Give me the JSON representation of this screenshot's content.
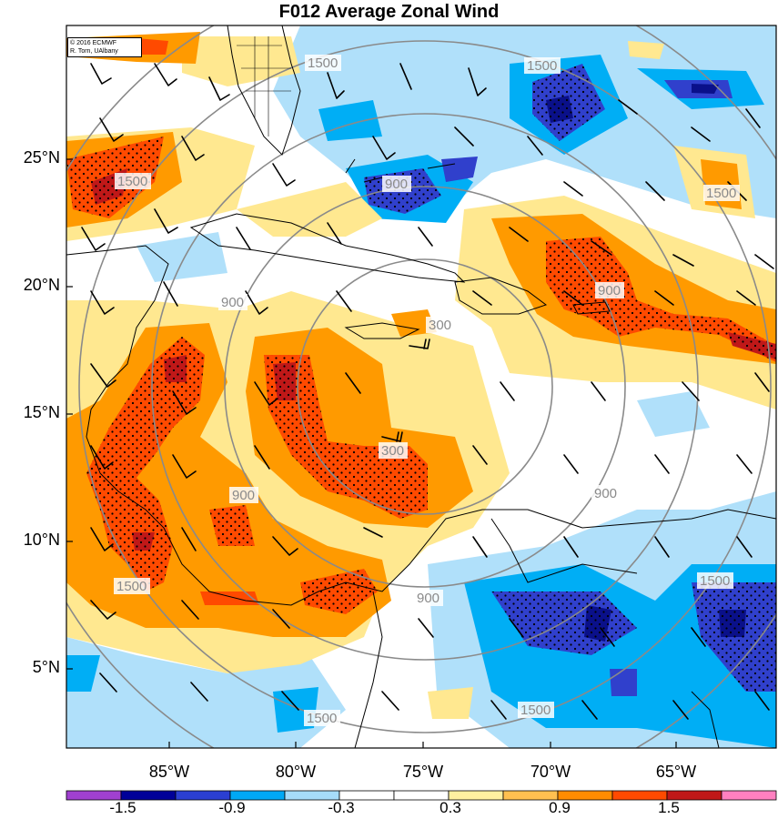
{
  "title": "F012 Average Zonal Wind",
  "credit": {
    "line1": "© 2016 ECMWF",
    "line2": "R. Torn, UAlbany"
  },
  "latitude_labels": [
    "25°N",
    "20°N",
    "15°N",
    "10°N",
    "5°N"
  ],
  "longitude_labels": [
    "85°W",
    "80°W",
    "75°W",
    "70°W",
    "65°W"
  ],
  "range_ring_labels": [
    "300",
    "900",
    "1500"
  ],
  "colorbar": {
    "tick_labels": [
      "-1.5",
      "-0.9",
      "-0.3",
      "0.3",
      "0.9",
      "1.5"
    ],
    "colors": [
      "#a040d0",
      "#000098",
      "#2b3fd2",
      "#00a8f5",
      "#a6dcfa",
      "#ffffff",
      "#ffffff",
      "#fff0a0",
      "#ffc050",
      "#ff8c00",
      "#ff4a00",
      "#c01818",
      "#ff80c0"
    ]
  },
  "colors": {
    "strong_positive": "#c01818",
    "positive": "#ff4a00",
    "moderate_positive": "#ff9a00",
    "weak_positive": "#ffe890",
    "weak_negative": "#b0e0fa",
    "moderate_negative": "#00aef5",
    "negative": "#3040cc",
    "strong_negative": "#0a108a",
    "ring": "#8a8a8a",
    "coast": "#000000"
  }
}
